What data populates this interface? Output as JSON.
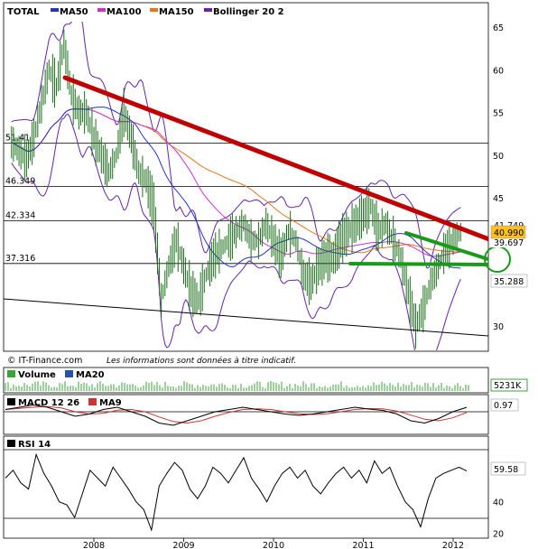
{
  "colors": {
    "ma50": "#2233cc",
    "ma100": "#cc33cc",
    "ma150": "#e8761a",
    "bollinger": "#6622aa",
    "resistance": "#c00000",
    "support": "#1a9a1a",
    "price": "#1a6e1a",
    "volume": "#3aa33a",
    "macd": "#000000",
    "ma9": "#cc3333",
    "rsi": "#000000"
  },
  "legend": {
    "total": "TOTAL",
    "ma50": "MA50",
    "ma100": "MA100",
    "ma150": "MA150",
    "bollinger": "Bollinger 20 2"
  },
  "footer": {
    "copyright": "© IT-Finance.com",
    "note": "Les informations sont données à titre indicatif."
  },
  "volume_panel": {
    "label": "Volume",
    "ma": "MA20",
    "value": "5231K"
  },
  "macd_panel": {
    "label": "MACD 12 26",
    "ma": "MA9",
    "value": "0.97"
  },
  "rsi_panel": {
    "label": "RSI 14",
    "value": "59.58"
  },
  "chart_data": {
    "type": "line",
    "price_axis": {
      "ylim": [
        27,
        66
      ],
      "ticks": [
        30,
        35,
        40,
        45,
        50,
        55,
        60,
        65
      ]
    },
    "x_axis": {
      "labels": [
        "2008",
        "2009",
        "2010",
        "2011",
        "2012"
      ]
    },
    "level_labels": [
      "51.41",
      "46.349",
      "42.334",
      "37.316"
    ],
    "levels": [
      51.41,
      46.349,
      42.334,
      37.316
    ],
    "last_price": "40.990",
    "price_boxes": [
      "41.749",
      "39.697",
      "35.288"
    ],
    "price": [
      [
        "2007-02",
        51.5
      ],
      [
        "2007-03",
        50.5
      ],
      [
        "2007-04",
        49.5
      ],
      [
        "2007-05",
        52
      ],
      [
        "2007-06",
        56
      ],
      [
        "2007-07",
        60
      ],
      [
        "2007-08",
        58
      ],
      [
        "2007-09",
        63
      ],
      [
        "2007-10",
        57
      ],
      [
        "2007-11",
        55
      ],
      [
        "2007-12",
        55
      ],
      [
        "2008-01",
        52
      ],
      [
        "2008-02",
        50
      ],
      [
        "2008-03",
        48
      ],
      [
        "2008-04",
        50
      ],
      [
        "2008-05",
        55
      ],
      [
        "2008-06",
        52
      ],
      [
        "2008-07",
        48
      ],
      [
        "2008-08",
        47
      ],
      [
        "2008-09",
        44
      ],
      [
        "2008-10",
        33
      ],
      [
        "2008-11",
        37
      ],
      [
        "2008-12",
        40
      ],
      [
        "2009-01",
        37
      ],
      [
        "2009-02",
        34
      ],
      [
        "2009-03",
        33
      ],
      [
        "2009-04",
        36
      ],
      [
        "2009-05",
        38
      ],
      [
        "2009-06",
        39
      ],
      [
        "2009-07",
        40
      ],
      [
        "2009-08",
        41
      ],
      [
        "2009-09",
        42
      ],
      [
        "2009-10",
        40
      ],
      [
        "2009-11",
        40
      ],
      [
        "2009-12",
        42
      ],
      [
        "2010-01",
        40
      ],
      [
        "2010-02",
        38
      ],
      [
        "2010-03",
        41
      ],
      [
        "2010-04",
        40
      ],
      [
        "2010-05",
        36
      ],
      [
        "2010-06",
        35
      ],
      [
        "2010-07",
        37
      ],
      [
        "2010-08",
        38
      ],
      [
        "2010-09",
        38
      ],
      [
        "2010-10",
        40
      ],
      [
        "2010-11",
        41
      ],
      [
        "2010-12",
        42
      ],
      [
        "2011-01",
        43
      ],
      [
        "2011-02",
        44
      ],
      [
        "2011-03",
        41
      ],
      [
        "2011-04",
        42
      ],
      [
        "2011-05",
        40
      ],
      [
        "2011-06",
        38
      ],
      [
        "2011-07",
        34
      ],
      [
        "2011-08",
        30
      ],
      [
        "2011-09",
        32
      ],
      [
        "2011-10",
        35
      ],
      [
        "2011-11",
        37
      ],
      [
        "2011-12",
        39
      ],
      [
        "2012-01",
        40
      ],
      [
        "2012-02",
        41
      ]
    ],
    "rsi_axis": {
      "ylim": [
        18,
        80
      ],
      "ticks": [
        20,
        40
      ]
    },
    "rsi": [
      55,
      60,
      52,
      48,
      70,
      58,
      50,
      40,
      38,
      30,
      45,
      60,
      55,
      50,
      62,
      55,
      48,
      40,
      35,
      22,
      50,
      58,
      65,
      60,
      48,
      42,
      50,
      62,
      58,
      52,
      60,
      68,
      55,
      48,
      40,
      50,
      58,
      62,
      55,
      60,
      50,
      45,
      52,
      58,
      62,
      55,
      60,
      52,
      66,
      58,
      62,
      50,
      40,
      35,
      24,
      42,
      55,
      58,
      60,
      62,
      59.58
    ],
    "macd": [
      0.5,
      1,
      1.5,
      1,
      0,
      -1,
      -0.5,
      0.5,
      1,
      0,
      -1,
      -2.5,
      -3,
      -2,
      -1,
      0,
      0.5,
      1,
      0.5,
      0,
      -0.5,
      -0.8,
      -0.5,
      0,
      0.5,
      1,
      0.6,
      0.3,
      -0.5,
      -2,
      -2.5,
      -1.5,
      0,
      0.97
    ]
  }
}
